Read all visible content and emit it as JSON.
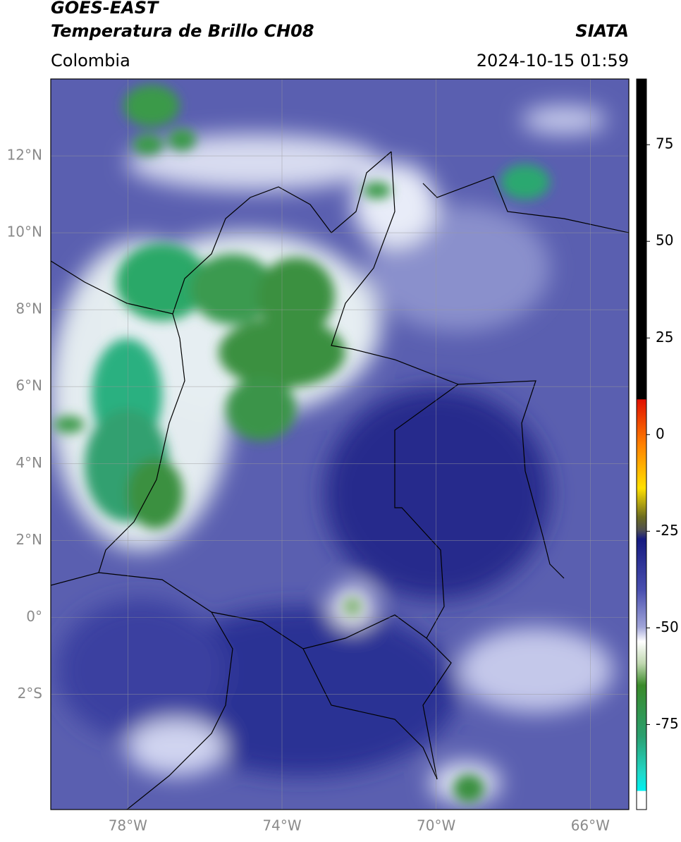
{
  "header": {
    "title": "GOES-EAST",
    "subtitle": "Temperatura de Brillo CH08",
    "source": "SIATA",
    "region": "Colombia",
    "datetime": "2024-10-15 01:59"
  },
  "map": {
    "lonlim": [
      -80,
      -65
    ],
    "latlim": [
      -5,
      14
    ],
    "lat_ticks": [
      {
        "value": 12,
        "label": "12°N"
      },
      {
        "value": 10,
        "label": "10°N"
      },
      {
        "value": 8,
        "label": "8°N"
      },
      {
        "value": 6,
        "label": "6°N"
      },
      {
        "value": 4,
        "label": "4°N"
      },
      {
        "value": 2,
        "label": "2°N"
      },
      {
        "value": 0,
        "label": "0°"
      },
      {
        "value": -2,
        "label": "2°S"
      }
    ],
    "lon_ticks": [
      {
        "value": -78,
        "label": "78°W"
      },
      {
        "value": -74,
        "label": "74°W"
      },
      {
        "value": -70,
        "label": "70°W"
      },
      {
        "value": -66,
        "label": "66°W"
      }
    ],
    "grid": true
  },
  "colorbar": {
    "lim": [
      -97,
      92
    ],
    "ticks": [
      75,
      50,
      25,
      0,
      -25,
      -50,
      -75
    ]
  }
}
